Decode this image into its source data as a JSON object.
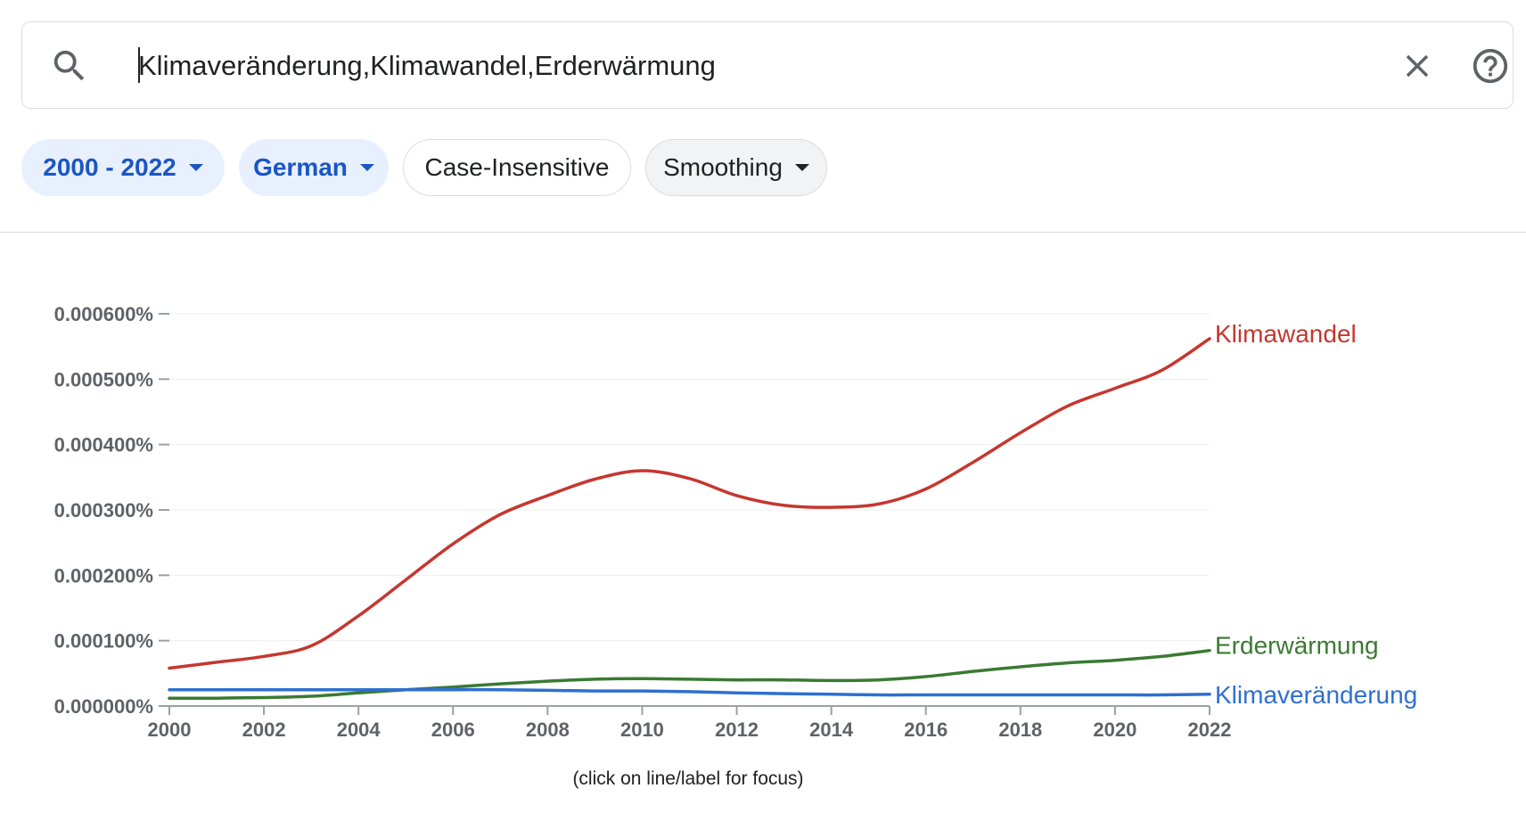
{
  "search": {
    "query": "Klimaveränderung,Klimawandel,Erderwärmung",
    "icon": "search-icon",
    "clear_icon": "close-icon",
    "help_icon": "help-icon"
  },
  "filters": {
    "year_range": "2000 - 2022",
    "corpus": "German",
    "case": "Case-Insensitive",
    "smoothing": "Smoothing"
  },
  "footer": {
    "hint": "(click on line/label for focus)"
  },
  "colors": {
    "klimawandel": "#c5372f",
    "erderwaermung": "#3a7a32",
    "klimaveraenderung": "#2e6fd0",
    "grid": "#eeeeee",
    "axis": "#9aa0a6"
  },
  "chart_data": {
    "type": "line",
    "title": "",
    "xlabel": "",
    "ylabel": "",
    "xlim": [
      2000,
      2022
    ],
    "ylim": [
      0,
      0.0006
    ],
    "x_ticks": [
      2000,
      2002,
      2004,
      2006,
      2008,
      2010,
      2012,
      2014,
      2016,
      2018,
      2020,
      2022
    ],
    "y_ticks": [
      0,
      0.0001,
      0.0002,
      0.0003,
      0.0004,
      0.0005,
      0.0006
    ],
    "y_tick_labels": [
      "0.000000%",
      "0.000100%",
      "0.000200%",
      "0.000300%",
      "0.000400%",
      "0.000500%",
      "0.000600%"
    ],
    "grid": true,
    "legend": "line-end labels",
    "x": [
      2000,
      2001,
      2002,
      2003,
      2004,
      2005,
      2006,
      2007,
      2008,
      2009,
      2010,
      2011,
      2012,
      2013,
      2014,
      2015,
      2016,
      2017,
      2018,
      2019,
      2020,
      2021,
      2022
    ],
    "series": [
      {
        "name": "Klimawandel",
        "color": "#c5372f",
        "values": [
          5.8e-05,
          6.7e-05,
          7.6e-05,
          9.2e-05,
          0.000138,
          0.000193,
          0.000248,
          0.000293,
          0.000322,
          0.000347,
          0.00036,
          0.000348,
          0.000322,
          0.000307,
          0.000304,
          0.000309,
          0.000332,
          0.000373,
          0.000418,
          0.000459,
          0.000486,
          0.000514,
          0.000562
        ]
      },
      {
        "name": "Erderwärmung",
        "color": "#3a7a32",
        "values": [
          1.2e-05,
          1.2e-05,
          1.3e-05,
          1.5e-05,
          2e-05,
          2.5e-05,
          2.9e-05,
          3.4e-05,
          3.8e-05,
          4.1e-05,
          4.2e-05,
          4.1e-05,
          4e-05,
          4e-05,
          3.9e-05,
          4e-05,
          4.5e-05,
          5.3e-05,
          6e-05,
          6.6e-05,
          7e-05,
          7.6e-05,
          8.5e-05
        ]
      },
      {
        "name": "Klimaveränderung",
        "color": "#2e6fd0",
        "values": [
          2.5e-05,
          2.5e-05,
          2.5e-05,
          2.5e-05,
          2.5e-05,
          2.5e-05,
          2.5e-05,
          2.5e-05,
          2.4e-05,
          2.3e-05,
          2.3e-05,
          2.2e-05,
          2e-05,
          1.9e-05,
          1.8e-05,
          1.7e-05,
          1.7e-05,
          1.7e-05,
          1.7e-05,
          1.7e-05,
          1.7e-05,
          1.7e-05,
          1.8e-05
        ]
      }
    ]
  }
}
